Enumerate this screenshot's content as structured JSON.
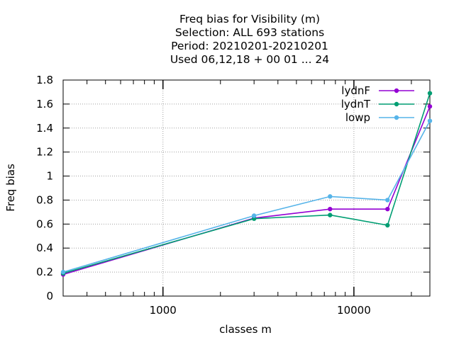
{
  "chart_data": {
    "type": "line",
    "title": [
      "Freq bias  for Visibility (m)",
      "Selection: ALL    693 stations",
      "Period: 20210201-20210201",
      "Used  06,12,18  + 00 01 ... 24"
    ],
    "xlabel": "classes m",
    "ylabel": "Freq bias",
    "xscale": "log",
    "xlim": [
      300,
      25000
    ],
    "ylim": [
      0,
      1.8
    ],
    "x_ticks": [
      1000,
      10000
    ],
    "x_tick_labels": [
      "1000",
      "10000"
    ],
    "y_ticks": [
      0,
      0.2,
      0.4,
      0.6,
      0.8,
      1,
      1.2,
      1.4,
      1.6,
      1.8
    ],
    "y_tick_labels": [
      "0",
      "0.2",
      "0.4",
      "0.6",
      "0.8",
      "1",
      "1.2",
      "1.4",
      "1.6",
      "1.8"
    ],
    "grid": true,
    "legend_position": "top-right",
    "x": [
      300,
      3000,
      7500,
      15000,
      25000
    ],
    "series": [
      {
        "name": "lydnF",
        "color": "#9400d3",
        "values": [
          0.18,
          0.65,
          0.725,
          0.725,
          1.58
        ]
      },
      {
        "name": "lydnT",
        "color": "#009e73",
        "values": [
          0.19,
          0.645,
          0.675,
          0.59,
          1.69
        ]
      },
      {
        "name": "lowp",
        "color": "#56b4e9",
        "values": [
          0.2,
          0.67,
          0.83,
          0.8,
          1.46
        ]
      }
    ]
  }
}
